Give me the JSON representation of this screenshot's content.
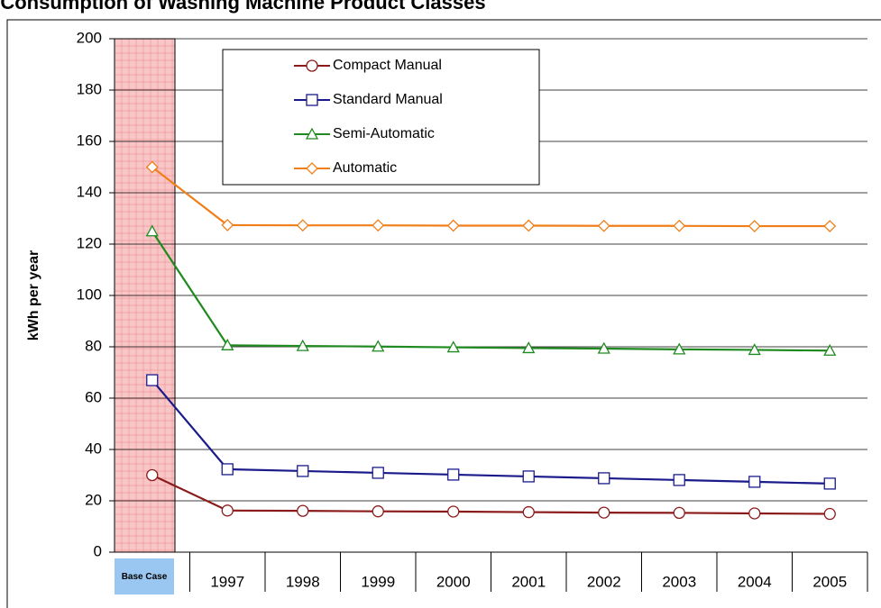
{
  "chart_data": {
    "type": "line",
    "title": "e Consumption of Washing Machine Product Classes",
    "y_label": "kWh per year",
    "categories": [
      "Base Case",
      "1997",
      "1998",
      "1999",
      "2000",
      "2001",
      "2002",
      "2003",
      "2004",
      "2005"
    ],
    "series": [
      {
        "name": "Compact Manual",
        "color": "#8b1a1a",
        "marker": "circle",
        "values": [
          30,
          16.2,
          16.1,
          15.9,
          15.8,
          15.6,
          15.4,
          15.3,
          15.1,
          14.9
        ]
      },
      {
        "name": "Standard Manual",
        "color": "#1a1a8b",
        "marker": "square",
        "values": [
          67,
          32.3,
          31.6,
          30.9,
          30.2,
          29.5,
          28.8,
          28.1,
          27.4,
          26.7
        ]
      },
      {
        "name": "Semi-Automatic",
        "color": "#1f8a1f",
        "marker": "triangle",
        "values": [
          125,
          80.6,
          80.3,
          80.1,
          79.8,
          79.5,
          79.3,
          79.0,
          78.8,
          78.5
        ]
      },
      {
        "name": "Automatic",
        "color": "#f07f1a",
        "marker": "diamond",
        "values": [
          150,
          127.4,
          127.3,
          127.3,
          127.2,
          127.2,
          127.1,
          127.1,
          127.0,
          127.0
        ]
      }
    ],
    "ylim": [
      0,
      200
    ],
    "yticks": [
      0,
      20,
      40,
      60,
      80,
      100,
      120,
      140,
      160,
      180,
      200
    ],
    "grid": true
  }
}
